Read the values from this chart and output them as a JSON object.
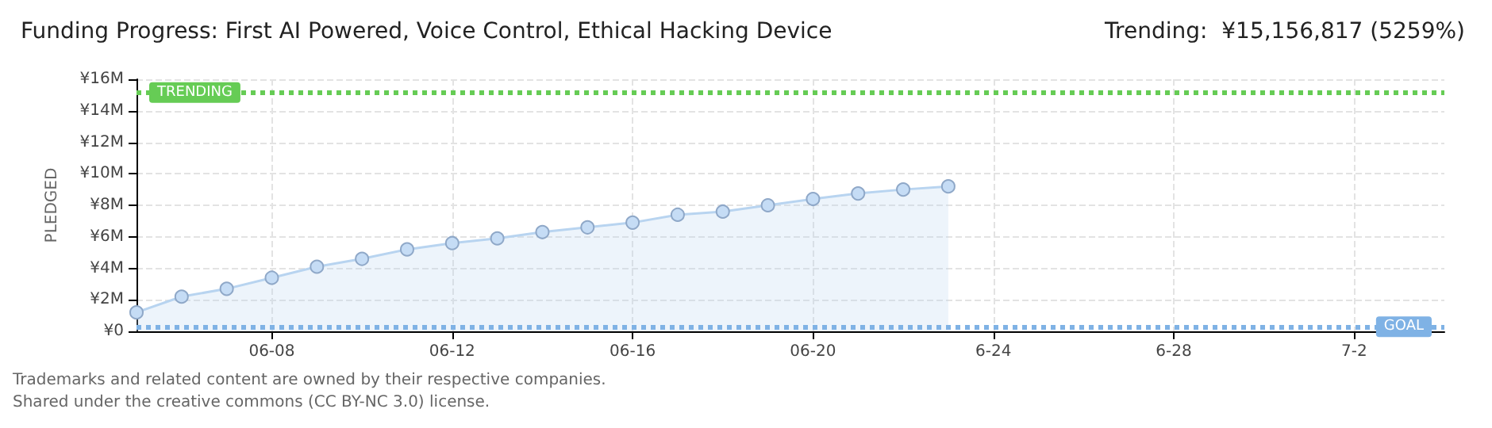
{
  "chart_data": {
    "type": "area",
    "title": "Funding Progress: First AI Powered, Voice Control, Ethical Hacking Device",
    "subtitle": "Trending:  ¥15,156,817 (5259%)",
    "ylabel": "PLEDGED",
    "annotations": [
      "Trademarks and related content are owned by their respective companies.",
      "Shared under the creative commons (CC BY-NC 3.0) license."
    ],
    "x": [
      "--06-05",
      "--06-06",
      "--06-07",
      "--06-08",
      "--06-09",
      "--06-10",
      "--06-11",
      "--06-12",
      "--06-13",
      "--06-14",
      "--06-15",
      "--06-16",
      "--06-17",
      "--06-18",
      "--06-19",
      "--06-20",
      "--06-21",
      "--06-22",
      "--06-23"
    ],
    "series": [
      {
        "color": "#b8d4f0",
        "values": [
          1.2,
          2.2,
          2.7,
          3.4,
          4.1,
          4.6,
          5.2,
          5.6,
          5.9,
          6.3,
          6.6,
          6.9,
          7.4,
          7.6,
          8.0,
          8.4,
          8.75,
          9.0,
          9.2
        ]
      }
    ],
    "xlim": [
      "--06-05",
      "--07-04"
    ],
    "xticks": [
      {
        "value": "--06-08",
        "label": "06-08"
      },
      {
        "value": "--06-12",
        "label": "06-12"
      },
      {
        "value": "--06-16",
        "label": "06-16"
      },
      {
        "value": "--06-20",
        "label": "06-20"
      },
      {
        "value": "--06-24",
        "label": "6-24"
      },
      {
        "value": "--06-28",
        "label": "6-28"
      },
      {
        "value": "--07-02",
        "label": "7-2"
      }
    ],
    "ylim": [
      0,
      16
    ],
    "yticks": [
      {
        "value": 0,
        "label": "¥0"
      },
      {
        "value": 2,
        "label": "¥2M"
      },
      {
        "value": 4,
        "label": "¥4M"
      },
      {
        "value": 6,
        "label": "¥6M"
      },
      {
        "value": 8,
        "label": "¥8M"
      },
      {
        "value": 10,
        "label": "¥10M"
      },
      {
        "value": 12,
        "label": "¥12M"
      },
      {
        "value": 14,
        "label": "¥14M"
      },
      {
        "value": 16,
        "label": "¥16M"
      }
    ],
    "ref_lines": [
      {
        "axis": "y",
        "value": 15.16,
        "label": "TRENDING",
        "color": "#66cc55",
        "line_style": "dotted"
      },
      {
        "axis": "y",
        "value": 0.29,
        "label": "GOAL",
        "color": "#7fb2e5",
        "line_style": "dotted"
      }
    ],
    "grid": true,
    "marker": "circle",
    "line_style": "solid"
  }
}
